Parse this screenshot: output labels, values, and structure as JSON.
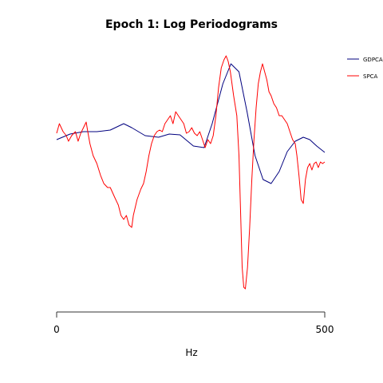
{
  "chart_data": {
    "type": "line",
    "title": "Epoch 1: Log Periodograms",
    "xlabel": "Hz",
    "ylabel": "",
    "xlim": [
      0,
      500
    ],
    "ylim": [
      -2.1,
      1.2
    ],
    "x_ticks": [
      "0",
      "500"
    ],
    "y_axis_visible": false,
    "grid": false,
    "legend_position": "top-right",
    "series": [
      {
        "name": "GDPCA",
        "color": "#00007f",
        "points": [
          [
            0,
            0
          ],
          [
            25,
            0.07
          ],
          [
            50,
            0.1
          ],
          [
            75,
            0.1
          ],
          [
            100,
            0.12
          ],
          [
            125,
            0.2
          ],
          [
            140,
            0.15
          ],
          [
            165,
            0.05
          ],
          [
            190,
            0.03
          ],
          [
            210,
            0.07
          ],
          [
            230,
            0.06
          ],
          [
            255,
            -0.08
          ],
          [
            275,
            -0.1
          ],
          [
            290,
            0.2
          ],
          [
            310,
            0.7
          ],
          [
            325,
            0.95
          ],
          [
            340,
            0.85
          ],
          [
            355,
            0.35
          ],
          [
            370,
            -0.2
          ],
          [
            385,
            -0.5
          ],
          [
            400,
            -0.55
          ],
          [
            415,
            -0.4
          ],
          [
            430,
            -0.15
          ],
          [
            445,
            -0.02
          ],
          [
            460,
            0.03
          ],
          [
            472,
            0.0
          ],
          [
            485,
            -0.08
          ],
          [
            500,
            -0.16
          ]
        ]
      },
      {
        "name": "SPCA",
        "color": "#ff0000",
        "points": [
          [
            0,
            0.08
          ],
          [
            5,
            0.2
          ],
          [
            12,
            0.1
          ],
          [
            18,
            0.05
          ],
          [
            22,
            -0.02
          ],
          [
            28,
            0.05
          ],
          [
            32,
            0.08
          ],
          [
            35,
            0.1
          ],
          [
            40,
            -0.02
          ],
          [
            45,
            0.08
          ],
          [
            50,
            0.15
          ],
          [
            55,
            0.22
          ],
          [
            58,
            0.1
          ],
          [
            62,
            -0.05
          ],
          [
            68,
            -0.2
          ],
          [
            75,
            -0.3
          ],
          [
            82,
            -0.45
          ],
          [
            88,
            -0.55
          ],
          [
            95,
            -0.6
          ],
          [
            100,
            -0.6
          ],
          [
            108,
            -0.72
          ],
          [
            115,
            -0.82
          ],
          [
            120,
            -0.95
          ],
          [
            125,
            -1.0
          ],
          [
            130,
            -0.95
          ],
          [
            135,
            -1.07
          ],
          [
            140,
            -1.1
          ],
          [
            143,
            -0.95
          ],
          [
            150,
            -0.75
          ],
          [
            157,
            -0.62
          ],
          [
            162,
            -0.55
          ],
          [
            167,
            -0.4
          ],
          [
            172,
            -0.2
          ],
          [
            177,
            -0.05
          ],
          [
            182,
            0.05
          ],
          [
            187,
            0.1
          ],
          [
            192,
            0.12
          ],
          [
            197,
            0.1
          ],
          [
            202,
            0.2
          ],
          [
            207,
            0.25
          ],
          [
            212,
            0.3
          ],
          [
            217,
            0.2
          ],
          [
            222,
            0.35
          ],
          [
            227,
            0.3
          ],
          [
            232,
            0.25
          ],
          [
            237,
            0.2
          ],
          [
            242,
            0.08
          ],
          [
            247,
            0.1
          ],
          [
            252,
            0.15
          ],
          [
            257,
            0.08
          ],
          [
            262,
            0.05
          ],
          [
            267,
            0.1
          ],
          [
            272,
            0.0
          ],
          [
            277,
            -0.1
          ],
          [
            282,
            0.0
          ],
          [
            287,
            -0.05
          ],
          [
            292,
            0.05
          ],
          [
            297,
            0.3
          ],
          [
            302,
            0.65
          ],
          [
            307,
            0.9
          ],
          [
            312,
            1.0
          ],
          [
            316,
            1.05
          ],
          [
            320,
            0.98
          ],
          [
            324,
            0.85
          ],
          [
            330,
            0.55
          ],
          [
            336,
            0.3
          ],
          [
            340,
            -0.2
          ],
          [
            343,
            -0.9
          ],
          [
            346,
            -1.6
          ],
          [
            349,
            -1.85
          ],
          [
            352,
            -1.87
          ],
          [
            356,
            -1.6
          ],
          [
            360,
            -1.1
          ],
          [
            364,
            -0.5
          ],
          [
            368,
            0.0
          ],
          [
            372,
            0.4
          ],
          [
            376,
            0.7
          ],
          [
            380,
            0.85
          ],
          [
            384,
            0.95
          ],
          [
            388,
            0.85
          ],
          [
            392,
            0.75
          ],
          [
            396,
            0.6
          ],
          [
            400,
            0.55
          ],
          [
            405,
            0.45
          ],
          [
            410,
            0.4
          ],
          [
            415,
            0.3
          ],
          [
            420,
            0.3
          ],
          [
            425,
            0.25
          ],
          [
            430,
            0.2
          ],
          [
            435,
            0.1
          ],
          [
            440,
            0.0
          ],
          [
            445,
            -0.05
          ],
          [
            448,
            -0.2
          ],
          [
            452,
            -0.45
          ],
          [
            456,
            -0.75
          ],
          [
            460,
            -0.8
          ],
          [
            464,
            -0.5
          ],
          [
            468,
            -0.35
          ],
          [
            472,
            -0.3
          ],
          [
            476,
            -0.38
          ],
          [
            480,
            -0.3
          ],
          [
            484,
            -0.28
          ],
          [
            488,
            -0.35
          ],
          [
            492,
            -0.28
          ],
          [
            496,
            -0.3
          ],
          [
            500,
            -0.28
          ]
        ]
      }
    ]
  }
}
